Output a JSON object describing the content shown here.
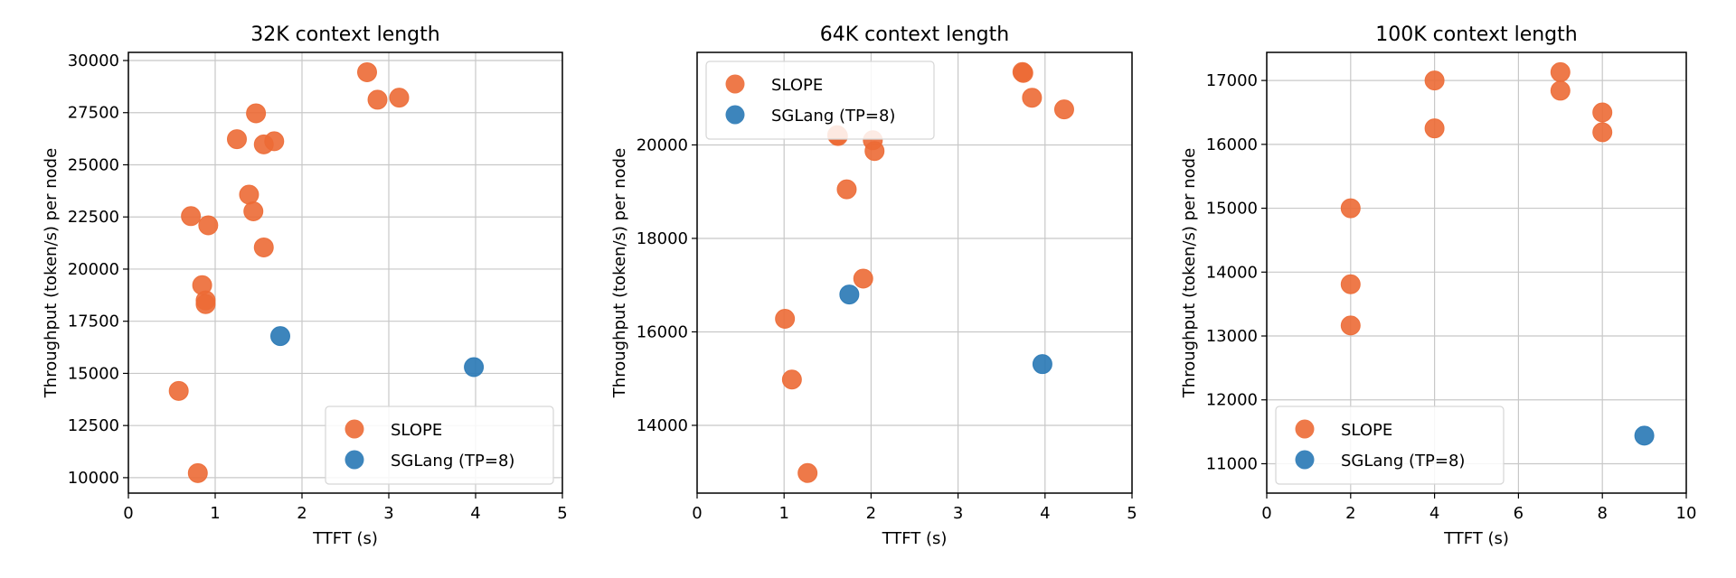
{
  "chart_data": [
    {
      "type": "scatter",
      "title": "32K context length",
      "xlabel": "TTFT (s)",
      "ylabel": "Throughput (token/s) per node",
      "xlim": [
        0,
        5
      ],
      "ylim": [
        9260,
        30390
      ],
      "xticks": [
        0,
        1,
        2,
        3,
        4,
        5
      ],
      "yticks": [
        10000,
        12500,
        15000,
        17500,
        20000,
        22500,
        25000,
        27500,
        30000
      ],
      "grid": true,
      "legend": "lower-right",
      "series": [
        {
          "name": "SLOPE",
          "color": "#EC6A35",
          "points": [
            [
              2.75,
              29440
            ],
            [
              2.87,
              28120
            ],
            [
              3.12,
              28220
            ],
            [
              1.47,
              27470
            ],
            [
              1.25,
              26230
            ],
            [
              1.56,
              25980
            ],
            [
              1.68,
              26130
            ],
            [
              1.39,
              23570
            ],
            [
              1.44,
              22770
            ],
            [
              0.72,
              22540
            ],
            [
              0.92,
              22100
            ],
            [
              1.56,
              21040
            ],
            [
              0.85,
              19230
            ],
            [
              0.89,
              18500
            ],
            [
              0.89,
              18320
            ],
            [
              0.58,
              14160
            ],
            [
              0.8,
              10220
            ]
          ]
        },
        {
          "name": "SGLang (TP=8)",
          "color": "#2878B5",
          "points": [
            [
              1.75,
              16790
            ],
            [
              3.98,
              15300
            ]
          ]
        }
      ]
    },
    {
      "type": "scatter",
      "title": "64K context length",
      "xlabel": "TTFT (s)",
      "ylabel": "Throughput (token/s) per node",
      "xlim": [
        0,
        5
      ],
      "ylim": [
        12550,
        21980
      ],
      "xticks": [
        0,
        1,
        2,
        3,
        4,
        5
      ],
      "yticks": [
        14000,
        16000,
        18000,
        20000
      ],
      "grid": true,
      "legend": "upper-left",
      "series": [
        {
          "name": "SLOPE",
          "color": "#EC6A35",
          "points": [
            [
              3.74,
              21560
            ],
            [
              3.75,
              21540
            ],
            [
              3.85,
              21010
            ],
            [
              4.22,
              20760
            ],
            [
              1.61,
              20210
            ],
            [
              1.62,
              20190
            ],
            [
              2.02,
              20100
            ],
            [
              2.04,
              19870
            ],
            [
              1.72,
              19050
            ],
            [
              1.91,
              17140
            ],
            [
              1.01,
              16280
            ],
            [
              1.09,
              14980
            ],
            [
              1.27,
              12980
            ]
          ]
        },
        {
          "name": "SGLang (TP=8)",
          "color": "#2878B5",
          "points": [
            [
              1.75,
              16800
            ],
            [
              3.97,
              15310
            ]
          ]
        }
      ]
    },
    {
      "type": "scatter",
      "title": "100K context length",
      "xlabel": "TTFT (s)",
      "ylabel": "Throughput (token/s) per node",
      "xlim": [
        0,
        10
      ],
      "ylim": [
        10540,
        17440
      ],
      "xticks": [
        0,
        2,
        4,
        6,
        8,
        10
      ],
      "yticks": [
        11000,
        12000,
        13000,
        14000,
        15000,
        16000,
        17000
      ],
      "grid": true,
      "legend": "lower-left",
      "series": [
        {
          "name": "SLOPE",
          "color": "#EC6A35",
          "points": [
            [
              4,
              17000
            ],
            [
              4,
              16250
            ],
            [
              7,
              17130
            ],
            [
              7,
              16840
            ],
            [
              8,
              16500
            ],
            [
              8,
              16190
            ],
            [
              2,
              15000
            ],
            [
              2,
              13810
            ],
            [
              2,
              13165
            ]
          ]
        },
        {
          "name": "SGLang (TP=8)",
          "color": "#2878B5",
          "points": [
            [
              9,
              11440
            ]
          ]
        }
      ]
    }
  ]
}
